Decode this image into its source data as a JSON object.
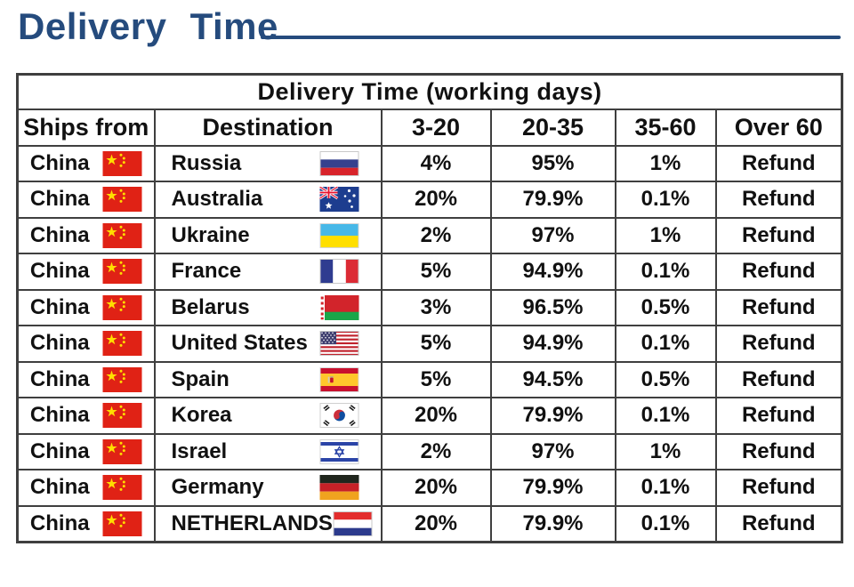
{
  "page_title": "Delivery Time",
  "accent_color": "#254b7d",
  "table": {
    "title": "Delivery Time (working days)",
    "columns": [
      "Ships from",
      "Destination",
      "3-20",
      "20-35",
      "35-60",
      "Over 60"
    ],
    "rows": [
      {
        "ships_from": "China",
        "ships_from_flag": "china-flag-icon",
        "destination": "Russia",
        "destination_flag": "russia-flag-icon",
        "pct_3_20": "4%",
        "pct_20_35": "95%",
        "pct_35_60": "1%",
        "over_60": "Refund"
      },
      {
        "ships_from": "China",
        "ships_from_flag": "china-flag-icon",
        "destination": "Australia",
        "destination_flag": "australia-flag-icon",
        "pct_3_20": "20%",
        "pct_20_35": "79.9%",
        "pct_35_60": "0.1%",
        "over_60": "Refund"
      },
      {
        "ships_from": "China",
        "ships_from_flag": "china-flag-icon",
        "destination": "Ukraine",
        "destination_flag": "ukraine-flag-icon",
        "pct_3_20": "2%",
        "pct_20_35": "97%",
        "pct_35_60": "1%",
        "over_60": "Refund"
      },
      {
        "ships_from": "China",
        "ships_from_flag": "china-flag-icon",
        "destination": "France",
        "destination_flag": "france-flag-icon",
        "pct_3_20": "5%",
        "pct_20_35": "94.9%",
        "pct_35_60": "0.1%",
        "over_60": "Refund"
      },
      {
        "ships_from": "China",
        "ships_from_flag": "china-flag-icon",
        "destination": "Belarus",
        "destination_flag": "belarus-flag-icon",
        "pct_3_20": "3%",
        "pct_20_35": "96.5%",
        "pct_35_60": "0.5%",
        "over_60": "Refund"
      },
      {
        "ships_from": "China",
        "ships_from_flag": "china-flag-icon",
        "destination": "United States",
        "destination_flag": "usa-flag-icon",
        "pct_3_20": "5%",
        "pct_20_35": "94.9%",
        "pct_35_60": "0.1%",
        "over_60": "Refund"
      },
      {
        "ships_from": "China",
        "ships_from_flag": "china-flag-icon",
        "destination": "Spain",
        "destination_flag": "spain-flag-icon",
        "pct_3_20": "5%",
        "pct_20_35": "94.5%",
        "pct_35_60": "0.5%",
        "over_60": "Refund"
      },
      {
        "ships_from": "China",
        "ships_from_flag": "china-flag-icon",
        "destination": "Korea",
        "destination_flag": "korea-flag-icon",
        "pct_3_20": "20%",
        "pct_20_35": "79.9%",
        "pct_35_60": "0.1%",
        "over_60": "Refund"
      },
      {
        "ships_from": "China",
        "ships_from_flag": "china-flag-icon",
        "destination": "Israel",
        "destination_flag": "israel-flag-icon",
        "pct_3_20": "2%",
        "pct_20_35": "97%",
        "pct_35_60": "1%",
        "over_60": "Refund"
      },
      {
        "ships_from": "China",
        "ships_from_flag": "china-flag-icon",
        "destination": "Germany",
        "destination_flag": "germany-flag-icon",
        "pct_3_20": "20%",
        "pct_20_35": "79.9%",
        "pct_35_60": "0.1%",
        "over_60": "Refund"
      },
      {
        "ships_from": "China",
        "ships_from_flag": "china-flag-icon",
        "destination": "NETHERLANDS",
        "destination_flag": "netherlands-flag-icon",
        "pct_3_20": "20%",
        "pct_20_35": "79.9%",
        "pct_35_60": "0.1%",
        "over_60": "Refund"
      }
    ]
  }
}
